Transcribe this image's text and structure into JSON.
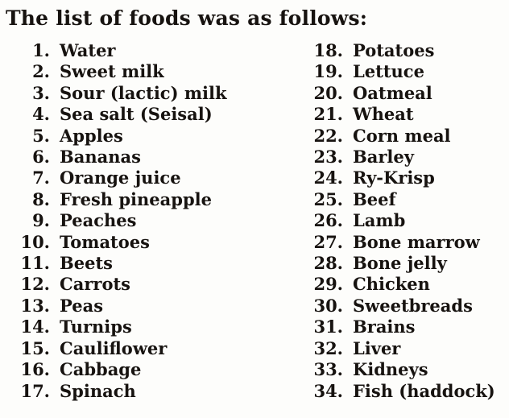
{
  "page": {
    "heading": "The list of foods was as follows:",
    "text_color": "#171310",
    "background_color": "#fdfdfb",
    "columns": [
      {
        "items": [
          {
            "num": "1.",
            "label": "Water"
          },
          {
            "num": "2.",
            "label": "Sweet milk"
          },
          {
            "num": "3.",
            "label": "Sour (lactic) milk"
          },
          {
            "num": "4.",
            "label": "Sea salt (Seisal)"
          },
          {
            "num": "5.",
            "label": "Apples"
          },
          {
            "num": "6.",
            "label": "Bananas"
          },
          {
            "num": "7.",
            "label": "Orange juice"
          },
          {
            "num": "8.",
            "label": "Fresh pineapple"
          },
          {
            "num": "9.",
            "label": "Peaches"
          },
          {
            "num": "10.",
            "label": "Tomatoes"
          },
          {
            "num": "11.",
            "label": "Beets"
          },
          {
            "num": "12.",
            "label": "Carrots"
          },
          {
            "num": "13.",
            "label": "Peas"
          },
          {
            "num": "14.",
            "label": "Turnips"
          },
          {
            "num": "15.",
            "label": "Cauliflower"
          },
          {
            "num": "16.",
            "label": "Cabbage"
          },
          {
            "num": "17.",
            "label": "Spinach"
          }
        ]
      },
      {
        "items": [
          {
            "num": "18.",
            "label": "Potatoes"
          },
          {
            "num": "19.",
            "label": "Lettuce"
          },
          {
            "num": "20.",
            "label": "Oatmeal"
          },
          {
            "num": "21.",
            "label": "Wheat"
          },
          {
            "num": "22.",
            "label": "Corn meal"
          },
          {
            "num": "23.",
            "label": "Barley"
          },
          {
            "num": "24.",
            "label": "Ry-Krisp"
          },
          {
            "num": "25.",
            "label": "Beef"
          },
          {
            "num": "26.",
            "label": "Lamb"
          },
          {
            "num": "27.",
            "label": "Bone marrow"
          },
          {
            "num": "28.",
            "label": "Bone jelly"
          },
          {
            "num": "29.",
            "label": "Chicken"
          },
          {
            "num": "30.",
            "label": "Sweetbreads"
          },
          {
            "num": "31.",
            "label": "Brains"
          },
          {
            "num": "32.",
            "label": "Liver"
          },
          {
            "num": "33.",
            "label": "Kidneys"
          },
          {
            "num": "34.",
            "label": "Fish (haddock)"
          }
        ]
      }
    ]
  }
}
